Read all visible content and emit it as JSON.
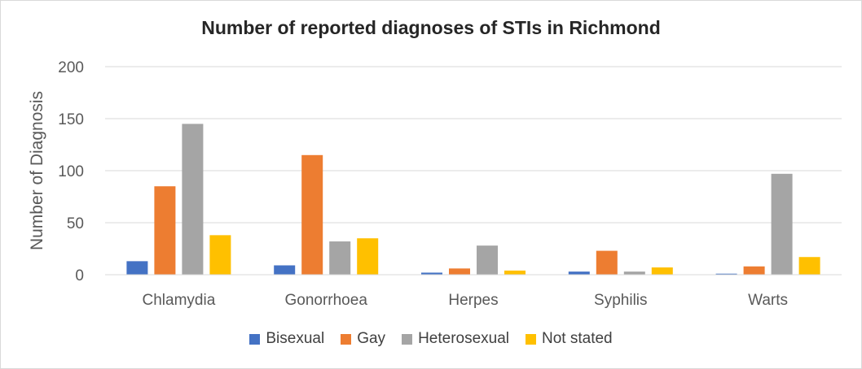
{
  "chart_data": {
    "type": "bar",
    "title": "Number of reported diagnoses of STIs in Richmond",
    "xlabel": "",
    "ylabel": "Number of Diagnosis",
    "ylim": [
      0,
      200
    ],
    "yticks": [
      0,
      50,
      100,
      150,
      200
    ],
    "grid": true,
    "legend_position": "bottom",
    "categories": [
      "Chlamydia",
      "Gonorrhoea",
      "Herpes",
      "Syphilis",
      "Warts"
    ],
    "series": [
      {
        "name": "Bisexual",
        "color": "#4472C4",
        "values": [
          13,
          9,
          2,
          3,
          1
        ]
      },
      {
        "name": "Gay",
        "color": "#ED7D31",
        "values": [
          85,
          115,
          6,
          23,
          8
        ]
      },
      {
        "name": "Heterosexual",
        "color": "#A5A5A5",
        "values": [
          145,
          32,
          28,
          3,
          97
        ]
      },
      {
        "name": "Not stated",
        "color": "#FFC000",
        "values": [
          38,
          35,
          4,
          7,
          17
        ]
      }
    ]
  }
}
